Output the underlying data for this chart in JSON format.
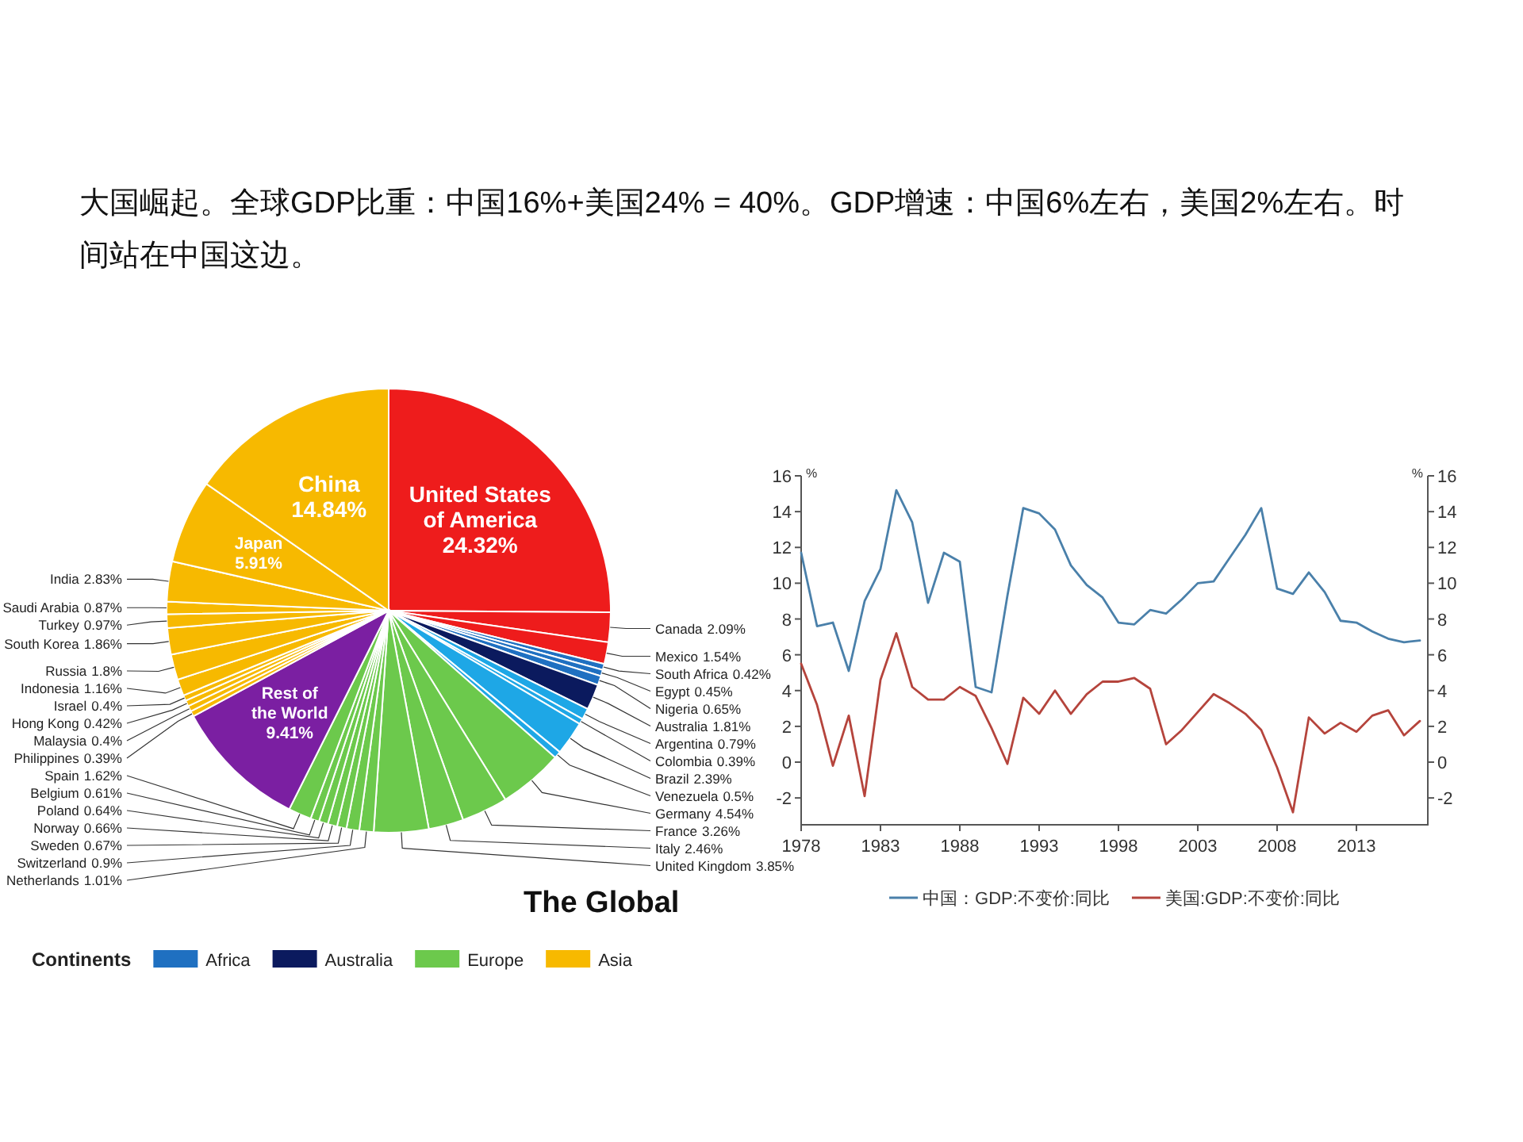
{
  "chart_data": [
    {
      "type": "other",
      "title": "大国崛起。全球GDP比重：中国16%+美国24%  = 40%。GDP增速：中国6%左右，美国2%左右。时间站在中国这边。",
      "legend_title": "Continents",
      "legend": "bottom",
      "annotations": [
        "The Global"
      ],
      "categories": [
        "United States of America",
        "Canada",
        "Mexico",
        "South Africa",
        "Egypt",
        "Nigeria",
        "Australia",
        "Argentina",
        "Colombia",
        "Brazil",
        "Venezuela",
        "Germany",
        "France",
        "Italy",
        "United Kingdom",
        "Netherlands",
        "Switzerland",
        "Sweden",
        "Norway",
        "Poland",
        "Belgium",
        "Spain",
        "Rest of the World",
        "Philippines",
        "Malaysia",
        "Hong Kong",
        "Israel",
        "Indonesia",
        "Russia",
        "South Korea",
        "Turkey",
        "Saudi Arabia",
        "India",
        "Japan",
        "China"
      ],
      "series": [
        {
          "color": "#ee1c1c",
          "values": [
            24.32,
            2.09,
            1.54,
            null,
            null,
            null,
            null,
            null,
            null,
            null,
            null,
            null,
            null,
            null,
            null,
            null,
            null,
            null,
            null,
            null,
            null,
            null,
            null,
            null,
            null,
            null,
            null,
            null,
            null,
            null,
            null,
            null,
            null,
            null,
            null
          ],
          "value_labels": [
            "24.32%",
            "2.09%",
            "1.54%",
            null,
            null,
            null,
            null,
            null,
            null,
            null,
            null,
            null,
            null,
            null,
            null,
            null,
            null,
            null,
            null,
            null,
            null,
            null,
            null,
            null,
            null,
            null,
            null,
            null,
            null,
            null,
            null,
            null,
            null,
            null,
            null
          ]
        },
        {
          "name": "Africa",
          "color": "#1f70c1",
          "values": [
            null,
            null,
            null,
            0.42,
            0.45,
            0.65,
            null,
            null,
            null,
            null,
            null,
            null,
            null,
            null,
            null,
            null,
            null,
            null,
            null,
            null,
            null,
            null,
            null,
            null,
            null,
            null,
            null,
            null,
            null,
            null,
            null,
            null,
            null,
            null,
            null
          ],
          "value_labels": [
            null,
            null,
            null,
            "0.42%",
            "0.45%",
            "0.65%",
            null,
            null,
            null,
            null,
            null,
            null,
            null,
            null,
            null,
            null,
            null,
            null,
            null,
            null,
            null,
            null,
            null,
            null,
            null,
            null,
            null,
            null,
            null,
            null,
            null,
            null,
            null,
            null,
            null
          ]
        },
        {
          "name": "Australia",
          "color": "#0b1a5e",
          "values": [
            null,
            null,
            null,
            null,
            null,
            null,
            1.81,
            null,
            null,
            null,
            null,
            null,
            null,
            null,
            null,
            null,
            null,
            null,
            null,
            null,
            null,
            null,
            null,
            null,
            null,
            null,
            null,
            null,
            null,
            null,
            null,
            null,
            null,
            null,
            null
          ],
          "value_labels": [
            null,
            null,
            null,
            null,
            null,
            null,
            "1.81%",
            null,
            null,
            null,
            null,
            null,
            null,
            null,
            null,
            null,
            null,
            null,
            null,
            null,
            null,
            null,
            null,
            null,
            null,
            null,
            null,
            null,
            null,
            null,
            null,
            null,
            null,
            null,
            null
          ]
        },
        {
          "color": "#1ea7e6",
          "values": [
            null,
            null,
            null,
            null,
            null,
            null,
            null,
            0.79,
            0.39,
            2.39,
            0.5,
            null,
            null,
            null,
            null,
            null,
            null,
            null,
            null,
            null,
            null,
            null,
            null,
            null,
            null,
            null,
            null,
            null,
            null,
            null,
            null,
            null,
            null,
            null,
            null
          ],
          "value_labels": [
            null,
            null,
            null,
            null,
            null,
            null,
            null,
            "0.79%",
            "0.39%",
            "2.39%",
            "0.5%",
            null,
            null,
            null,
            null,
            null,
            null,
            null,
            null,
            null,
            null,
            null,
            null,
            null,
            null,
            null,
            null,
            null,
            null,
            null,
            null,
            null,
            null,
            null,
            null
          ]
        },
        {
          "name": "Europe",
          "color": "#6cc94c",
          "values": [
            null,
            null,
            null,
            null,
            null,
            null,
            null,
            null,
            null,
            null,
            null,
            4.54,
            3.26,
            2.46,
            3.85,
            1.01,
            0.9,
            0.67,
            0.66,
            0.64,
            0.61,
            1.62,
            null,
            null,
            null,
            null,
            null,
            null,
            null,
            null,
            null,
            null,
            null,
            null,
            null
          ],
          "value_labels": [
            null,
            null,
            null,
            null,
            null,
            null,
            null,
            null,
            null,
            null,
            null,
            "4.54%",
            "3.26%",
            "2.46%",
            "3.85%",
            "1.01%",
            "0.9%",
            "0.67%",
            "0.66%",
            "0.64%",
            "0.61%",
            "1.62%",
            null,
            null,
            null,
            null,
            null,
            null,
            null,
            null,
            null,
            null,
            null,
            null,
            null
          ]
        },
        {
          "color": "#7b1fa2",
          "values": [
            null,
            null,
            null,
            null,
            null,
            null,
            null,
            null,
            null,
            null,
            null,
            null,
            null,
            null,
            null,
            null,
            null,
            null,
            null,
            null,
            null,
            null,
            9.41,
            null,
            null,
            null,
            null,
            null,
            null,
            null,
            null,
            null,
            null,
            null,
            null
          ],
          "value_labels": [
            null,
            null,
            null,
            null,
            null,
            null,
            null,
            null,
            null,
            null,
            null,
            null,
            null,
            null,
            null,
            null,
            null,
            null,
            null,
            null,
            null,
            null,
            "9.41%",
            null,
            null,
            null,
            null,
            null,
            null,
            null,
            null,
            null,
            null,
            null,
            null
          ]
        },
        {
          "name": "Asia",
          "color": "#f7b900",
          "values": [
            null,
            null,
            null,
            null,
            null,
            null,
            null,
            null,
            null,
            null,
            null,
            null,
            null,
            null,
            null,
            null,
            null,
            null,
            null,
            null,
            null,
            null,
            null,
            0.39,
            0.4,
            0.42,
            0.4,
            1.16,
            1.8,
            1.86,
            0.97,
            0.87,
            2.83,
            5.91,
            14.84
          ],
          "value_labels": [
            null,
            null,
            null,
            null,
            null,
            null,
            null,
            null,
            null,
            null,
            null,
            null,
            null,
            null,
            null,
            null,
            null,
            null,
            null,
            null,
            null,
            null,
            null,
            "0.39%",
            "0.4%",
            "0.42%",
            "0.4%",
            "1.16%",
            "1.8%",
            "1.86%",
            "0.97%",
            "0.87%",
            "2.83%",
            "5.91%",
            "14.84%"
          ]
        }
      ]
    },
    {
      "type": "line",
      "legend": "bottom",
      "ylabel": "%",
      "y2label": "%",
      "x": [
        1978,
        1979,
        1980,
        1981,
        1982,
        1983,
        1984,
        1985,
        1986,
        1987,
        1988,
        1989,
        1990,
        1991,
        1992,
        1993,
        1994,
        1995,
        1996,
        1997,
        1998,
        1999,
        2000,
        2001,
        2002,
        2003,
        2004,
        2005,
        2006,
        2007,
        2008,
        2009,
        2010,
        2011,
        2012,
        2013,
        2014,
        2015,
        2016,
        2017
      ],
      "xlim": [
        1978,
        2017.5
      ],
      "xticks": [
        1978,
        1983,
        1988,
        1993,
        1998,
        2003,
        2008,
        2013
      ],
      "ylim": [
        -3.5,
        16
      ],
      "yticks": [
        -2,
        0,
        2,
        4,
        6,
        8,
        10,
        12,
        14,
        16
      ],
      "y2lim": [
        -3.5,
        16
      ],
      "y2ticks": [
        -2,
        0,
        2,
        4,
        6,
        8,
        10,
        12,
        14,
        16
      ],
      "series": [
        {
          "name": "中国：GDP:不变价:同比",
          "color": "#4a80aa",
          "values": [
            11.7,
            7.6,
            7.8,
            5.1,
            9.0,
            10.8,
            15.2,
            13.4,
            8.9,
            11.7,
            11.2,
            4.2,
            3.9,
            9.3,
            14.2,
            13.9,
            13.0,
            11.0,
            9.9,
            9.2,
            7.8,
            7.7,
            8.5,
            8.3,
            9.1,
            10.0,
            10.1,
            11.4,
            12.7,
            14.2,
            9.7,
            9.4,
            10.6,
            9.5,
            7.9,
            7.8,
            7.3,
            6.9,
            6.7,
            6.8
          ]
        },
        {
          "name": "美国:GDP:不变价:同比",
          "color": "#b5443c",
          "values": [
            5.5,
            3.2,
            -0.2,
            2.6,
            -1.9,
            4.6,
            7.2,
            4.2,
            3.5,
            3.5,
            4.2,
            3.7,
            1.9,
            -0.1,
            3.6,
            2.7,
            4.0,
            2.7,
            3.8,
            4.5,
            4.5,
            4.7,
            4.1,
            1.0,
            1.8,
            2.8,
            3.8,
            3.3,
            2.7,
            1.8,
            -0.3,
            -2.8,
            2.5,
            1.6,
            2.2,
            1.7,
            2.6,
            2.9,
            1.5,
            2.3
          ]
        }
      ]
    }
  ]
}
